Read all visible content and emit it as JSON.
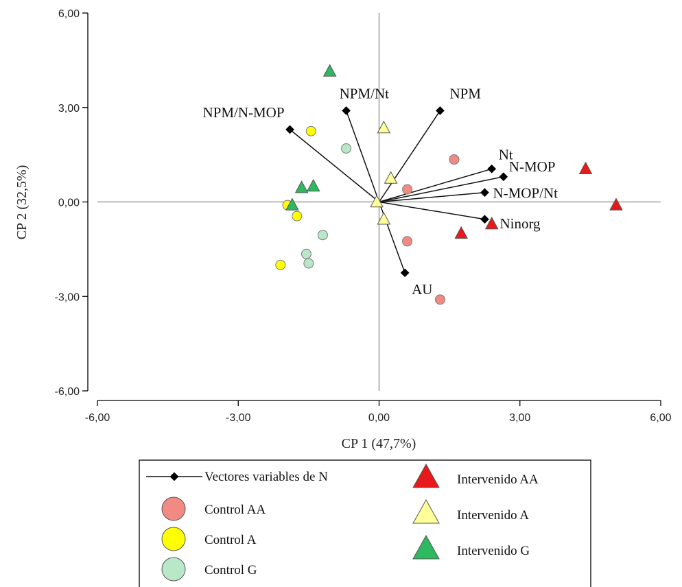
{
  "chart_data": {
    "type": "scatter",
    "xlabel": "CP 1 (47,7%)",
    "ylabel": "CP 2 (32,5%)",
    "xlim": [
      -6,
      6
    ],
    "ylim": [
      -6,
      6
    ],
    "xticks": [
      "-6,00",
      "-3,00",
      "0,00",
      "3,00",
      "6,00"
    ],
    "yticks": [
      "-6,00",
      "-3,00",
      "0,00",
      "3,00",
      "6,00"
    ],
    "xtick_values": [
      -6,
      -3,
      0,
      3,
      6
    ],
    "ytick_values": [
      -6,
      -3,
      0,
      3,
      6
    ],
    "grid": false,
    "legend_position": "bottom",
    "vectors": [
      {
        "label": "NPM",
        "x": 1.3,
        "y": 2.9
      },
      {
        "label": "NPM/Nt",
        "x": -0.7,
        "y": 2.9
      },
      {
        "label": "NPM/N-MOP",
        "x": -1.9,
        "y": 2.3
      },
      {
        "label": "Nt",
        "x": 2.4,
        "y": 1.05
      },
      {
        "label": "N-MOP",
        "x": 2.65,
        "y": 0.8
      },
      {
        "label": "N-MOP/Nt",
        "x": 2.25,
        "y": 0.3
      },
      {
        "label": "Ninorg",
        "x": 2.25,
        "y": -0.55
      },
      {
        "label": "AU",
        "x": 0.55,
        "y": -2.25
      }
    ],
    "series": [
      {
        "name": "Control AA",
        "marker": "circle",
        "color": "#f28a84",
        "points": [
          [
            1.6,
            1.35
          ],
          [
            0.6,
            0.4
          ],
          [
            0.6,
            -1.25
          ],
          [
            1.3,
            -3.1
          ]
        ]
      },
      {
        "name": "Control A",
        "marker": "circle",
        "color": "#ffff00",
        "points": [
          [
            -1.45,
            2.25
          ],
          [
            -1.95,
            -0.1
          ],
          [
            -1.75,
            -0.45
          ],
          [
            -2.1,
            -2.0
          ]
        ]
      },
      {
        "name": "Control G",
        "marker": "circle",
        "color": "#b8e8c8",
        "points": [
          [
            -0.7,
            1.7
          ],
          [
            -1.2,
            -1.05
          ],
          [
            -1.55,
            -1.65
          ],
          [
            -1.5,
            -1.95
          ]
        ]
      },
      {
        "name": "Intervenido AA",
        "marker": "triangle",
        "color": "#e8191a",
        "points": [
          [
            4.4,
            1.05
          ],
          [
            5.05,
            -0.1
          ],
          [
            1.75,
            -1.0
          ],
          [
            2.4,
            -0.7
          ]
        ]
      },
      {
        "name": "Intervenido A",
        "marker": "triangle",
        "color": "#ffff99",
        "points": [
          [
            0.1,
            2.35
          ],
          [
            0.25,
            0.75
          ],
          [
            -0.05,
            0.0
          ],
          [
            0.1,
            -0.55
          ]
        ]
      },
      {
        "name": "Intervenido G",
        "marker": "triangle",
        "color": "#2eb860",
        "points": [
          [
            -1.05,
            4.15
          ],
          [
            -1.65,
            0.45
          ],
          [
            -1.4,
            0.5
          ],
          [
            -1.85,
            -0.1
          ]
        ]
      }
    ],
    "legend": {
      "vectors_label": "Vectores variables de N"
    }
  }
}
